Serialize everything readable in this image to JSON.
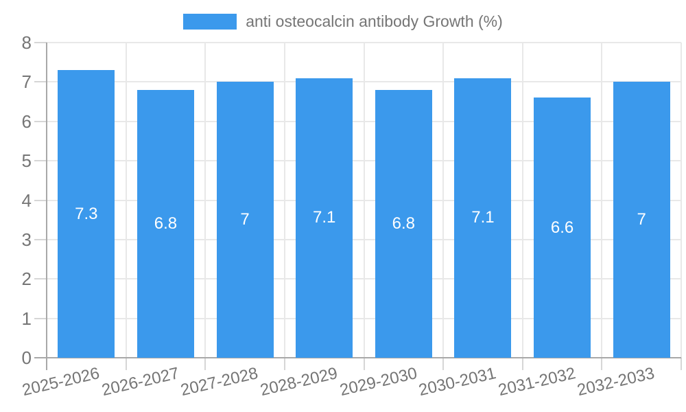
{
  "chart_data": {
    "type": "bar",
    "title": "",
    "legend_label": "anti osteocalcin antibody Growth (%)",
    "legend_position": "top",
    "categories": [
      "2025-2026",
      "2026-2027",
      "2027-2028",
      "2028-2029",
      "2029-2030",
      "2030-2031",
      "2031-2032",
      "2032-2033"
    ],
    "values": [
      7.3,
      6.8,
      7,
      7.1,
      6.8,
      7.1,
      6.6,
      7
    ],
    "bar_labels": [
      "7.3",
      "6.8",
      "7",
      "7.1",
      "6.8",
      "7.1",
      "6.6",
      "7"
    ],
    "xlabel": "",
    "ylabel": "",
    "ylim": [
      0,
      8
    ],
    "yticks": [
      0,
      1,
      2,
      3,
      4,
      5,
      6,
      7,
      8
    ],
    "grid": true,
    "colors": {
      "bar": "#3B99EC",
      "bar_label": "#ffffff",
      "gridline": "#e8e8e8",
      "tick_mark": "#d6d6d6",
      "axis_line": "#a8a8a8",
      "axis_text": "#757575",
      "legend_text": "#757575",
      "background": "#ffffff"
    }
  }
}
